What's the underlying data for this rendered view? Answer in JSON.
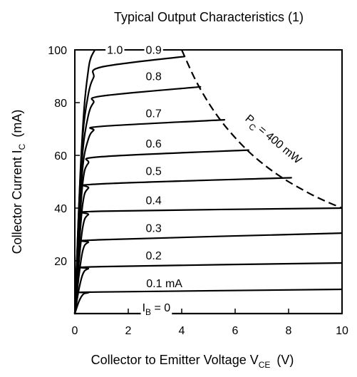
{
  "chart_data": {
    "type": "line",
    "title": "Typical Output Characteristics (1)",
    "xlabel": {
      "main": "Collector to Emitter Voltage  V",
      "sub": "CE",
      "unit": "(V)"
    },
    "ylabel": {
      "main": "Collector Current  I",
      "sub": "C",
      "unit": "(mA)"
    },
    "xlim": [
      0,
      10
    ],
    "ylim": [
      0,
      100
    ],
    "x_ticks": [
      0,
      2,
      4,
      6,
      8,
      10
    ],
    "x_tick_labels": [
      "0",
      "2",
      "4",
      "6",
      "8",
      "10"
    ],
    "y_ticks": [
      20,
      40,
      60,
      80,
      100
    ],
    "y_tick_labels": [
      "20",
      "40",
      "60",
      "80",
      "100"
    ],
    "grid": false,
    "series": [
      {
        "name": "0",
        "label": "I",
        "label_sub": "B",
        "label_rest": " = 0",
        "x": [
          0,
          10
        ],
        "y": [
          0,
          0
        ]
      },
      {
        "name": "0.1 mA",
        "label": "0.1 mA",
        "x": [
          0,
          0.15,
          0.3,
          0.5,
          1.0,
          10
        ],
        "y": [
          0,
          4.5,
          7.2,
          7.9,
          8.2,
          9.2
        ]
      },
      {
        "name": "0.2",
        "label": "0.2",
        "x": [
          0,
          0.15,
          0.3,
          0.5,
          1.0,
          10
        ],
        "y": [
          0,
          9,
          15,
          17,
          17.8,
          19.2
        ]
      },
      {
        "name": "0.3",
        "label": "0.3",
        "x": [
          0,
          0.15,
          0.3,
          0.5,
          1.0,
          10
        ],
        "y": [
          0,
          14,
          24,
          27,
          28,
          30.5
        ]
      },
      {
        "name": "0.4",
        "label": "0.4",
        "x": [
          0,
          0.15,
          0.3,
          0.5,
          1.0,
          10
        ],
        "y": [
          0,
          19,
          33,
          37.5,
          38.8,
          40
        ]
      },
      {
        "name": "0.5",
        "label": "0.5",
        "x": [
          0,
          0.15,
          0.3,
          0.5,
          1.0,
          8.1
        ],
        "y": [
          0,
          24,
          42,
          47.5,
          49.2,
          51.5
        ]
      },
      {
        "name": "0.6",
        "label": "0.6",
        "x": [
          0,
          0.15,
          0.3,
          0.5,
          1.0,
          6.5
        ],
        "y": [
          0,
          29,
          50,
          57,
          59.5,
          62
        ]
      },
      {
        "name": "0.7",
        "label": "0.7",
        "x": [
          0,
          0.15,
          0.3,
          0.5,
          0.7,
          1.0,
          5.6
        ],
        "y": [
          0,
          33,
          56,
          66,
          69.5,
          71,
          73.5
        ]
      },
      {
        "name": "0.8",
        "label": "0.8",
        "x": [
          0,
          0.15,
          0.3,
          0.5,
          0.7,
          1.0,
          4.7
        ],
        "y": [
          0,
          37,
          62,
          75,
          80,
          82.5,
          86
        ]
      },
      {
        "name": "0.9",
        "label": "0.9",
        "x": [
          0,
          0.15,
          0.3,
          0.5,
          0.7,
          1.0,
          4.1
        ],
        "y": [
          0,
          40,
          68,
          83,
          89.5,
          93.5,
          97.5
        ]
      },
      {
        "name": "1.0",
        "label": "1.0",
        "x": [
          0,
          0.2,
          0.35,
          0.5,
          0.6,
          0.75
        ],
        "y": [
          0,
          52,
          78,
          92,
          97,
          100
        ]
      }
    ],
    "limit_curve": {
      "label": "P",
      "label_sub": "C",
      "label_rest": " = 400 mW",
      "style": "dashed",
      "x": [
        4.0,
        4.5,
        5.0,
        5.5,
        6.0,
        6.5,
        7.0,
        7.5,
        8.0,
        8.5,
        9.0,
        9.5,
        10.0
      ],
      "y": [
        100,
        88.9,
        80,
        72.7,
        66.7,
        61.5,
        57.1,
        53.3,
        50,
        47.1,
        44.4,
        42.1,
        40
      ]
    },
    "curve_label_positions": [
      {
        "series": "1.0",
        "x": 1.5,
        "y": 100
      },
      {
        "series": "0.9",
        "x": 2.95,
        "y": 100
      },
      {
        "series": "0.8",
        "x": 2.95,
        "y": 90
      },
      {
        "series": "0.7",
        "x": 2.95,
        "y": 76
      },
      {
        "series": "0.6",
        "x": 2.95,
        "y": 64.5
      },
      {
        "series": "0.5",
        "x": 2.95,
        "y": 54
      },
      {
        "series": "0.4",
        "x": 2.95,
        "y": 43
      },
      {
        "series": "0.3",
        "x": 2.95,
        "y": 32.5
      },
      {
        "series": "0.2",
        "x": 2.95,
        "y": 22
      },
      {
        "series": "0.1 mA",
        "x": 3.35,
        "y": 11.5
      },
      {
        "series": "0",
        "x": 3.05,
        "y": 2.3
      }
    ]
  }
}
